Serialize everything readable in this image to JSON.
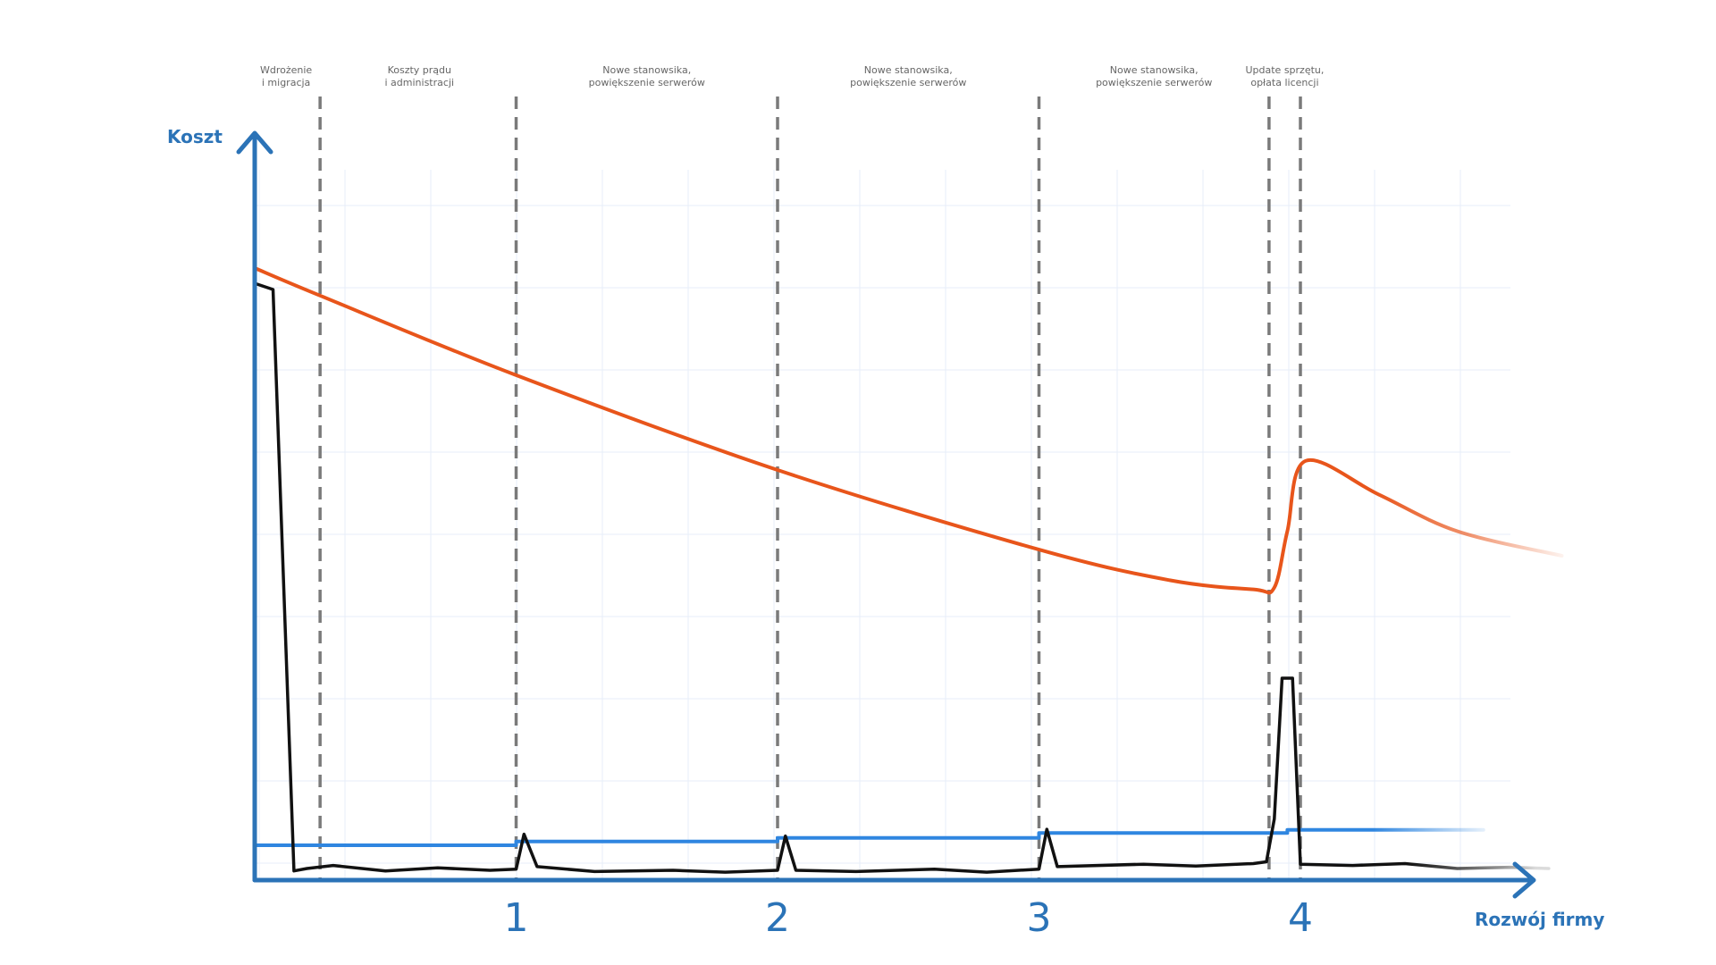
{
  "chart_data": {
    "type": "line",
    "title": "",
    "xlabel": "Rozwój firmy",
    "ylabel": "Koszt",
    "grid": true,
    "axis_color": "#2b73b7",
    "milestones": [
      {
        "x": 1,
        "label": "1"
      },
      {
        "x": 2,
        "label": "2"
      },
      {
        "x": 3,
        "label": "3"
      },
      {
        "x": 4,
        "label": "4"
      }
    ],
    "phase_dividers": [
      0.25,
      1.0,
      2.0,
      3.0,
      3.88,
      4.0
    ],
    "phase_labels": [
      {
        "x": 0.12,
        "lines": [
          "Wdrożenie",
          "i migracja"
        ]
      },
      {
        "x": 0.63,
        "lines": [
          "Koszty prądu",
          "i administracji"
        ]
      },
      {
        "x": 1.5,
        "lines": [
          "Nowe stanowsika,",
          "powiększenie serwerów"
        ]
      },
      {
        "x": 2.5,
        "lines": [
          "Nowe stanowsika,",
          "powiększenie serwerów"
        ]
      },
      {
        "x": 3.44,
        "lines": [
          "Nowe stanowsika,",
          "powiększenie serwerów"
        ]
      },
      {
        "x": 3.94,
        "lines": [
          "Update sprzętu,",
          "opłata licencji"
        ]
      }
    ],
    "series": [
      {
        "key": "orange",
        "color": "#e8551b",
        "values": [
          [
            0,
            100
          ],
          [
            0.25,
            95.5
          ],
          [
            1.0,
            82.5
          ],
          [
            2.0,
            67
          ],
          [
            3.0,
            54
          ],
          [
            3.5,
            49
          ],
          [
            3.82,
            47.5
          ],
          [
            3.9,
            47.8
          ],
          [
            3.95,
            57
          ],
          [
            4.02,
            68.5
          ],
          [
            4.3,
            63
          ],
          [
            4.6,
            57
          ],
          [
            5.0,
            53
          ]
        ]
      },
      {
        "key": "blue",
        "color": "#2f86e0",
        "values": [
          [
            0,
            5.7
          ],
          [
            1.0,
            5.7
          ],
          [
            1.0,
            6.3
          ],
          [
            2.0,
            6.3
          ],
          [
            2.0,
            6.9
          ],
          [
            3.0,
            6.9
          ],
          [
            3.0,
            7.7
          ],
          [
            3.95,
            7.7
          ],
          [
            3.95,
            8.2
          ],
          [
            4.7,
            8.2
          ]
        ]
      },
      {
        "key": "black",
        "color": "#111111",
        "values": [
          [
            0,
            97.5
          ],
          [
            0.07,
            96.5
          ],
          [
            0.15,
            1.5
          ],
          [
            0.2,
            1.9
          ],
          [
            0.3,
            2.4
          ],
          [
            0.5,
            1.5
          ],
          [
            0.7,
            2.0
          ],
          [
            0.9,
            1.6
          ],
          [
            1.0,
            1.8
          ],
          [
            1.03,
            7.5
          ],
          [
            1.08,
            2.2
          ],
          [
            1.3,
            1.4
          ],
          [
            1.6,
            1.6
          ],
          [
            1.8,
            1.3
          ],
          [
            2.0,
            1.6
          ],
          [
            2.03,
            7.2
          ],
          [
            2.07,
            1.6
          ],
          [
            2.3,
            1.4
          ],
          [
            2.6,
            1.8
          ],
          [
            2.8,
            1.3
          ],
          [
            3.0,
            1.8
          ],
          [
            3.03,
            8.3
          ],
          [
            3.07,
            2.2
          ],
          [
            3.4,
            2.6
          ],
          [
            3.6,
            2.3
          ],
          [
            3.82,
            2.7
          ],
          [
            3.87,
            3.0
          ],
          [
            3.9,
            10.0
          ],
          [
            3.93,
            33.0
          ],
          [
            3.97,
            33.0
          ],
          [
            4.0,
            2.6
          ],
          [
            4.2,
            2.4
          ],
          [
            4.4,
            2.7
          ],
          [
            4.6,
            1.9
          ],
          [
            4.8,
            2.1
          ],
          [
            4.95,
            1.9
          ]
        ]
      }
    ]
  }
}
